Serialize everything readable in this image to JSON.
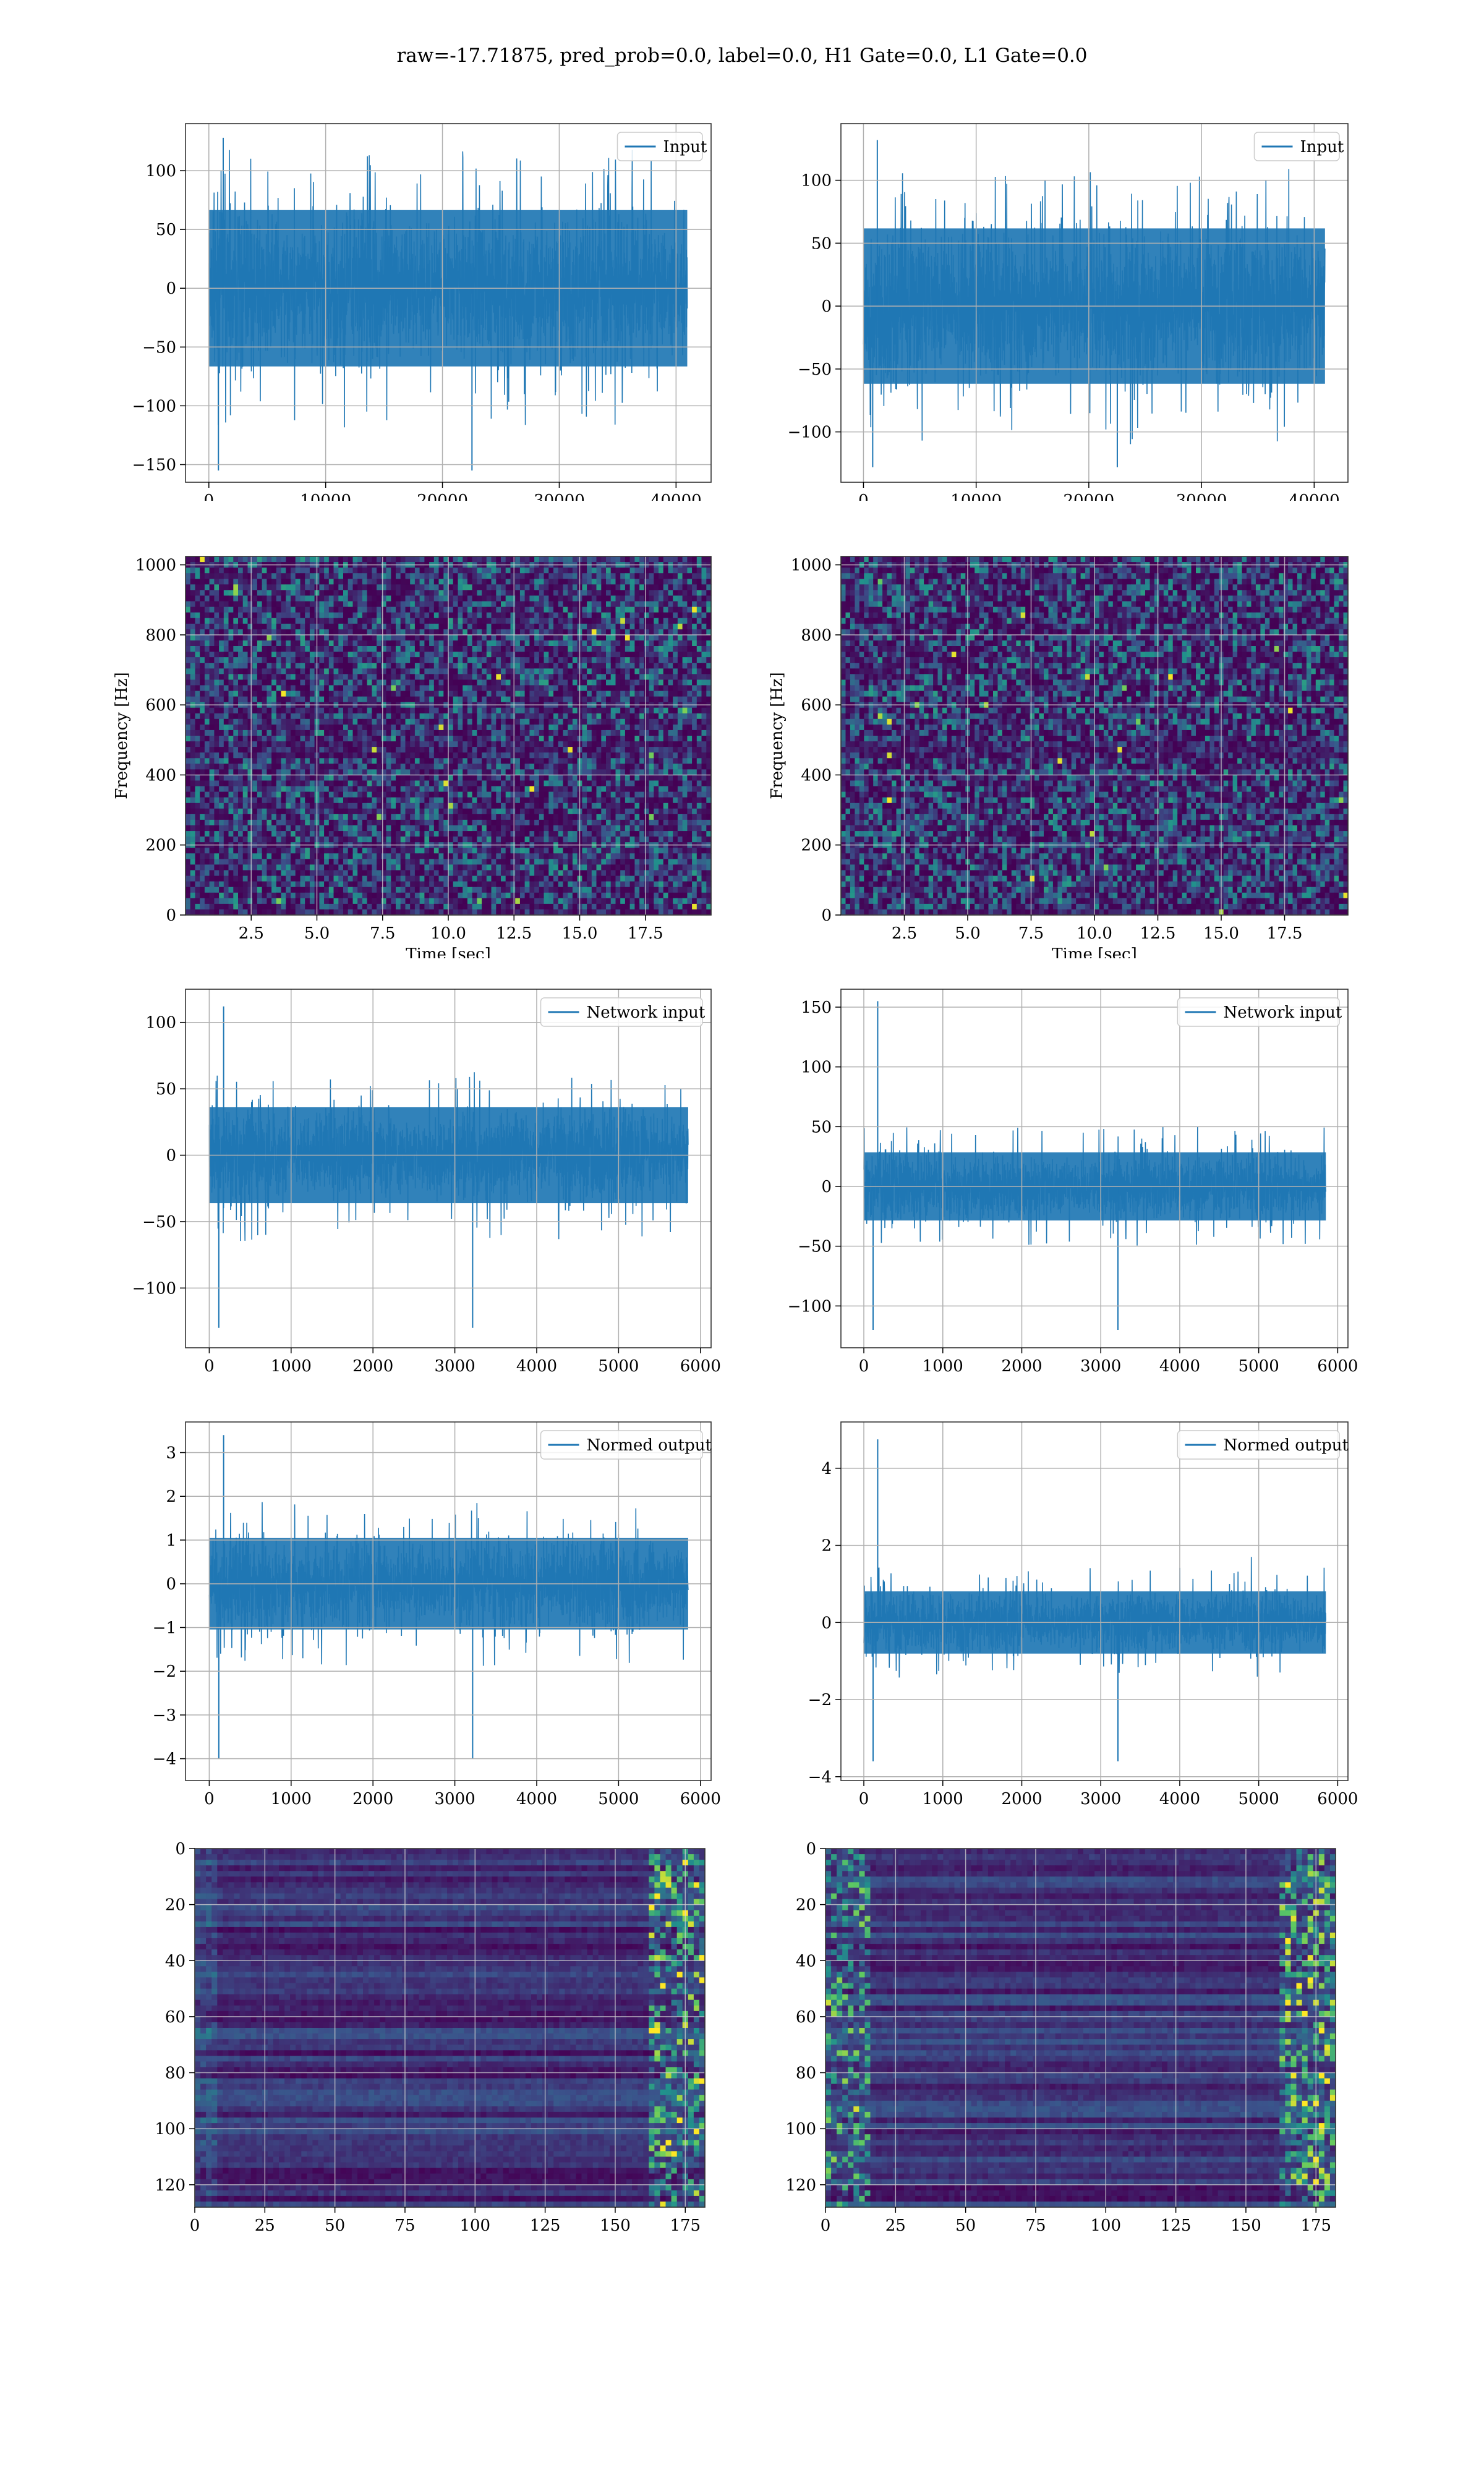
{
  "figure_title": "raw=-17.71875, pred_prob=0.0, label=0.0, H1 Gate=0.0, L1 Gate=0.0",
  "colors": {
    "line": "#1f77b4",
    "grid": "#b0b0b0",
    "viridis_low": "#440154",
    "viridis_mid": "#21918c",
    "viridis_high": "#fde725"
  },
  "chart_data": [
    {
      "id": "input-left",
      "type": "line",
      "legend": "top-right",
      "grid": true,
      "series": [
        {
          "name": "Input"
        }
      ],
      "xlim": [
        -2000,
        43000
      ],
      "ylim": [
        -165,
        140
      ],
      "xticks": [
        0,
        10000,
        20000,
        30000,
        40000
      ],
      "xtick_labels": [
        "0",
        "10000",
        "20000",
        "30000",
        "40000"
      ],
      "yticks": [
        100,
        50,
        0,
        -50,
        -100,
        -150
      ],
      "ytick_labels": [
        "100",
        "50",
        "0",
        "−50",
        "−100",
        "−150"
      ],
      "signal": {
        "length": 40960,
        "core_amplitude": 70,
        "max": 128,
        "min": -155
      }
    },
    {
      "id": "input-right",
      "type": "line",
      "legend": "top-right",
      "grid": true,
      "series": [
        {
          "name": "Input"
        }
      ],
      "xlim": [
        -2000,
        43000
      ],
      "ylim": [
        -140,
        145
      ],
      "xticks": [
        0,
        10000,
        20000,
        30000,
        40000
      ],
      "xtick_labels": [
        "0",
        "10000",
        "20000",
        "30000",
        "40000"
      ],
      "yticks": [
        100,
        50,
        0,
        -50,
        -100
      ],
      "ytick_labels": [
        "100",
        "50",
        "0",
        "−50",
        "−100"
      ],
      "signal": {
        "length": 40960,
        "core_amplitude": 65,
        "max": 132,
        "min": -128
      }
    },
    {
      "id": "spectrogram-left",
      "type": "heatmap",
      "grid": true,
      "xlabel": "Time [sec]",
      "ylabel": "Frequency [Hz]",
      "xlim": [
        0,
        20
      ],
      "ylim": [
        0,
        1024
      ],
      "xticks": [
        2.5,
        5,
        7.5,
        10,
        12.5,
        15,
        17.5
      ],
      "xtick_labels": [
        "2.5",
        "5.0",
        "7.5",
        "10.0",
        "12.5",
        "15.0",
        "17.5"
      ],
      "yticks": [
        0,
        200,
        400,
        600,
        800,
        1000
      ],
      "ytick_labels": [
        "0",
        "200",
        "400",
        "600",
        "800",
        "1000"
      ]
    },
    {
      "id": "spectrogram-right",
      "type": "heatmap",
      "grid": true,
      "xlabel": "Time [sec]",
      "ylabel": "Frequency [Hz]",
      "xlim": [
        0,
        20
      ],
      "ylim": [
        0,
        1024
      ],
      "xticks": [
        2.5,
        5,
        7.5,
        10,
        12.5,
        15,
        17.5
      ],
      "xtick_labels": [
        "2.5",
        "5.0",
        "7.5",
        "10.0",
        "12.5",
        "15.0",
        "17.5"
      ],
      "yticks": [
        0,
        200,
        400,
        600,
        800,
        1000
      ],
      "ytick_labels": [
        "0",
        "200",
        "400",
        "600",
        "800",
        "1000"
      ]
    },
    {
      "id": "network-input-left",
      "type": "line",
      "legend": "top-right",
      "grid": true,
      "series": [
        {
          "name": "Network input"
        }
      ],
      "xlim": [
        -290,
        6130
      ],
      "ylim": [
        -145,
        125
      ],
      "xticks": [
        0,
        1000,
        2000,
        3000,
        4000,
        5000,
        6000
      ],
      "xtick_labels": [
        "0",
        "1000",
        "2000",
        "3000",
        "4000",
        "5000",
        "6000"
      ],
      "yticks": [
        100,
        50,
        0,
        -50,
        -100
      ],
      "ytick_labels": [
        "100",
        "50",
        "0",
        "−50",
        "−100"
      ],
      "signal": {
        "length": 5850,
        "core_amplitude": 38,
        "max": 112,
        "min": -130
      }
    },
    {
      "id": "network-input-right",
      "type": "line",
      "legend": "top-right",
      "grid": true,
      "series": [
        {
          "name": "Network input"
        }
      ],
      "xlim": [
        -290,
        6130
      ],
      "ylim": [
        -135,
        165
      ],
      "xticks": [
        0,
        1000,
        2000,
        3000,
        4000,
        5000,
        6000
      ],
      "xtick_labels": [
        "0",
        "1000",
        "2000",
        "3000",
        "4000",
        "5000",
        "6000"
      ],
      "yticks": [
        150,
        100,
        50,
        0,
        -50,
        -100
      ],
      "ytick_labels": [
        "150",
        "100",
        "50",
        "0",
        "−50",
        "−100"
      ],
      "signal": {
        "length": 5850,
        "core_amplitude": 30,
        "max": 155,
        "min": -120
      }
    },
    {
      "id": "normed-output-left",
      "type": "line",
      "legend": "top-right",
      "grid": true,
      "series": [
        {
          "name": "Normed output"
        }
      ],
      "xlim": [
        -290,
        6130
      ],
      "ylim": [
        -4.5,
        3.7
      ],
      "xticks": [
        0,
        1000,
        2000,
        3000,
        4000,
        5000,
        6000
      ],
      "xtick_labels": [
        "0",
        "1000",
        "2000",
        "3000",
        "4000",
        "5000",
        "6000"
      ],
      "yticks": [
        3,
        2,
        1,
        0,
        -1,
        -2,
        -3,
        -4
      ],
      "ytick_labels": [
        "3",
        "2",
        "1",
        "0",
        "−1",
        "−2",
        "−3",
        "−4"
      ],
      "signal": {
        "length": 5850,
        "core_amplitude": 1.1,
        "max": 3.4,
        "min": -4.0
      }
    },
    {
      "id": "normed-output-right",
      "type": "line",
      "legend": "top-right",
      "grid": true,
      "series": [
        {
          "name": "Normed output"
        }
      ],
      "xlim": [
        -290,
        6130
      ],
      "ylim": [
        -4.1,
        5.2
      ],
      "xticks": [
        0,
        1000,
        2000,
        3000,
        4000,
        5000,
        6000
      ],
      "xtick_labels": [
        "0",
        "1000",
        "2000",
        "3000",
        "4000",
        "5000",
        "6000"
      ],
      "yticks": [
        4,
        2,
        0,
        -2,
        -4
      ],
      "ytick_labels": [
        "4",
        "2",
        "0",
        "−2",
        "−4"
      ],
      "signal": {
        "length": 5850,
        "core_amplitude": 0.85,
        "max": 4.75,
        "min": -3.6
      }
    },
    {
      "id": "feature-map-left",
      "type": "heatmap",
      "grid": true,
      "xlim": [
        0,
        182
      ],
      "ylim": [
        128,
        0
      ],
      "xticks": [
        0,
        25,
        50,
        75,
        100,
        125,
        150,
        175
      ],
      "xtick_labels": [
        "0",
        "25",
        "50",
        "75",
        "100",
        "125",
        "150",
        "175"
      ],
      "yticks": [
        0,
        20,
        40,
        60,
        80,
        100,
        120
      ],
      "ytick_labels": [
        "0",
        "20",
        "40",
        "60",
        "80",
        "100",
        "120"
      ]
    },
    {
      "id": "feature-map-right",
      "type": "heatmap",
      "grid": true,
      "xlim": [
        0,
        182
      ],
      "ylim": [
        128,
        0
      ],
      "xticks": [
        0,
        25,
        50,
        75,
        100,
        125,
        150,
        175
      ],
      "xtick_labels": [
        "0",
        "25",
        "50",
        "75",
        "100",
        "125",
        "150",
        "175"
      ],
      "yticks": [
        0,
        20,
        40,
        60,
        80,
        100,
        120
      ],
      "ytick_labels": [
        "0",
        "20",
        "40",
        "60",
        "80",
        "100",
        "120"
      ]
    }
  ]
}
